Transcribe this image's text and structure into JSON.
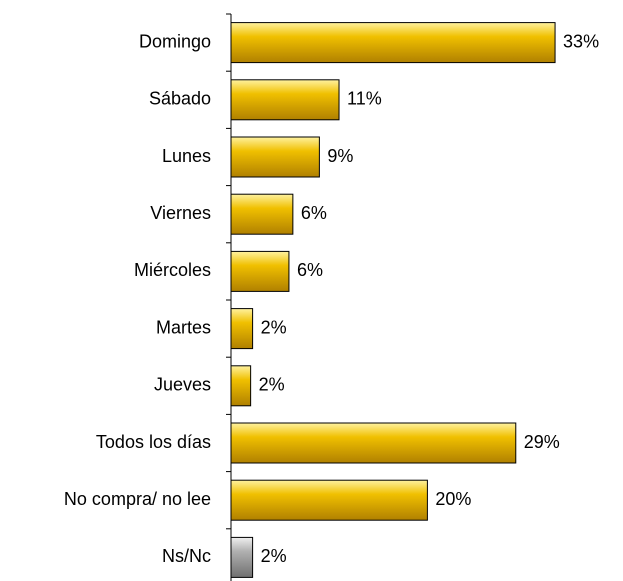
{
  "chart_data": {
    "type": "bar",
    "orientation": "horizontal",
    "categories": [
      "Domingo",
      "Sábado",
      "Lunes",
      "Viernes",
      "Miércoles",
      "Martes",
      "Jueves",
      "Todos los días",
      "No compra/ no lee",
      "Ns/Nc"
    ],
    "values": [
      33,
      11,
      9,
      6.3,
      5.9,
      2.2,
      2,
      29,
      20,
      2.2
    ],
    "value_labels": [
      "33%",
      "11%",
      "9%",
      "6%",
      "6%",
      "2%",
      "2%",
      "29%",
      "20%",
      "2%"
    ],
    "colors": [
      "#e8b400",
      "#e8b400",
      "#e8b400",
      "#e8b400",
      "#e8b400",
      "#e8b400",
      "#e8b400",
      "#e8b400",
      "#e8b400",
      "#a8a8a8"
    ]
  }
}
